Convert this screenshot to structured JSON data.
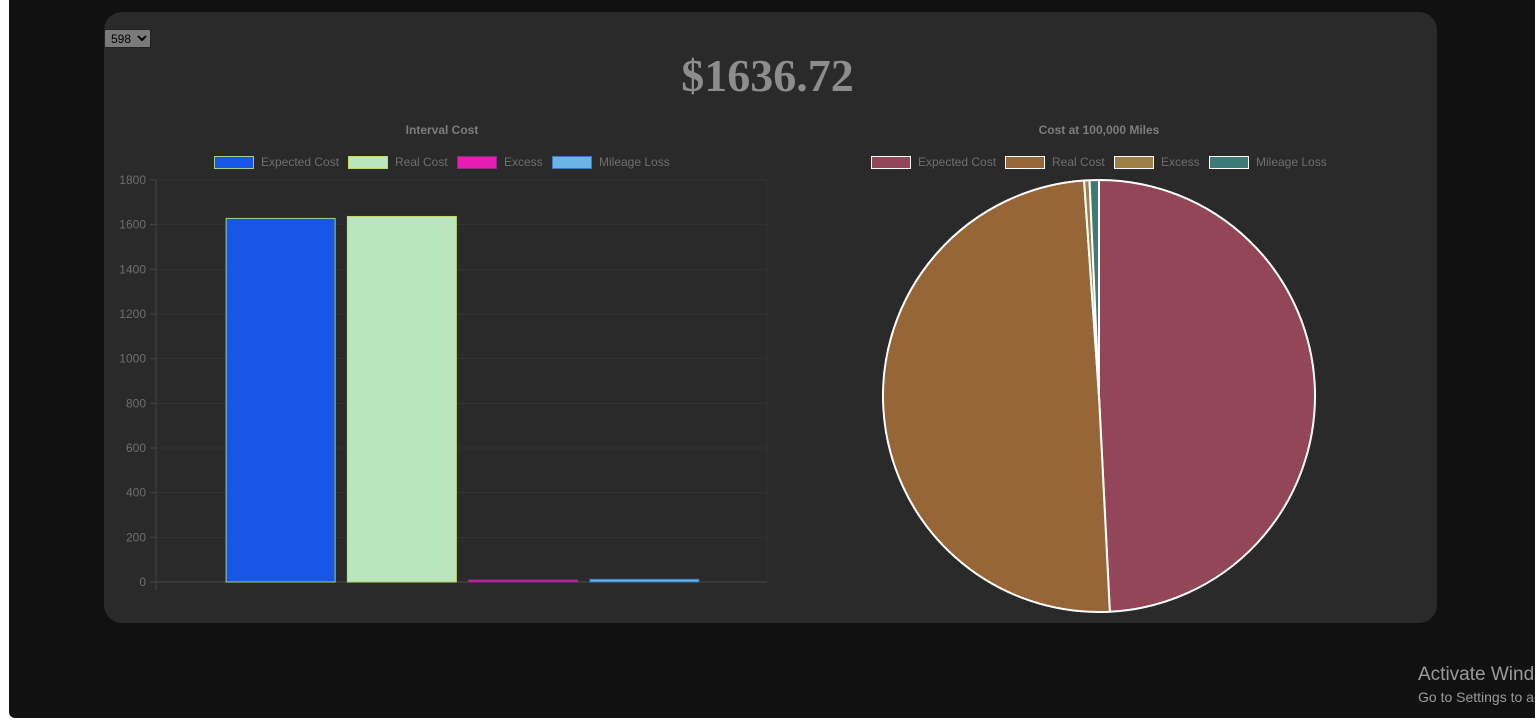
{
  "selector": {
    "value": "598",
    "arrow": "⌄"
  },
  "total_label": "$1636.72",
  "colors": {
    "frame": "#111111",
    "card": "#2a2a2a"
  },
  "chart_data": [
    {
      "type": "bar",
      "title": "Interval Cost",
      "categories": [
        "Expected Cost",
        "Real Cost",
        "Excess",
        "Mileage Loss"
      ],
      "series": [
        {
          "name": "Expected Cost",
          "values": [
            1628,
            null,
            null,
            null
          ],
          "color": "#1856e8",
          "border": "#9fd27f"
        },
        {
          "name": "Real Cost",
          "values": [
            null,
            1636.72,
            null,
            null
          ],
          "color": "#b9e6bd",
          "border": "#c8d860"
        },
        {
          "name": "Excess",
          "values": [
            null,
            null,
            8.72,
            null
          ],
          "color": "#e81cb2",
          "border": "#8a2a8a"
        },
        {
          "name": "Mileage Loss",
          "values": [
            null,
            null,
            null,
            12
          ],
          "color": "#6ab4e8",
          "border": "#3a7ac0"
        }
      ],
      "ylim": [
        0,
        1800
      ],
      "yticks": [
        0,
        200,
        400,
        600,
        800,
        1000,
        1200,
        1400,
        1600,
        1800
      ],
      "grid": true,
      "legend": "top"
    },
    {
      "type": "pie",
      "title": "Cost at 100,000 Miles",
      "labels": [
        "Expected Cost",
        "Real Cost",
        "Excess",
        "Mileage Loss"
      ],
      "values": [
        49.2,
        49.7,
        0.4,
        0.7
      ],
      "colors": [
        "#924657",
        "#966636",
        "#9e8046",
        "#3c7a78"
      ],
      "legend": "top"
    }
  ],
  "watermark": {
    "line1": "Activate Windows",
    "line2": "Go to Settings to activate Windows."
  }
}
